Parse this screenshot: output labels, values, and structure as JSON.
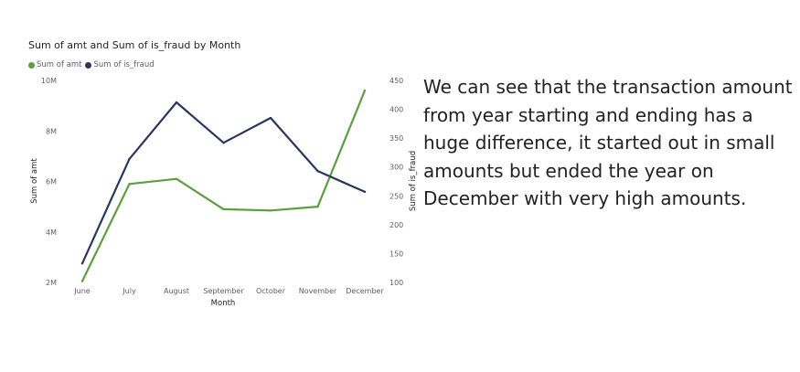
{
  "chart_data": {
    "type": "line",
    "title": "Sum of amt and Sum of is_fraud by Month",
    "xlabel": "Month",
    "ylabel": "Sum of amt",
    "y2label": "Sum of is_fraud",
    "categories": [
      "June",
      "July",
      "August",
      "September",
      "October",
      "November",
      "December"
    ],
    "ylim": [
      2000000,
      10000000
    ],
    "y_ticks": [
      2000000,
      4000000,
      6000000,
      8000000,
      10000000
    ],
    "y_tick_labels": [
      "2M",
      "4M",
      "6M",
      "8M",
      "10M"
    ],
    "y2lim": [
      100,
      450
    ],
    "y2_ticks": [
      100,
      150,
      200,
      250,
      300,
      350,
      400,
      450
    ],
    "y2_tick_labels": [
      "100",
      "150",
      "200",
      "250",
      "300",
      "350",
      "400",
      "450"
    ],
    "grid": false,
    "legend_position": "top-left",
    "series": [
      {
        "name": "Sum of amt",
        "axis": "left",
        "color": "#5aa03c",
        "values": [
          2050000,
          5900000,
          6100000,
          4900000,
          4850000,
          5000000,
          9600000
        ]
      },
      {
        "name": "Sum of is_fraud",
        "axis": "right",
        "color": "#283760",
        "values": [
          133,
          314,
          412,
          342,
          385,
          293,
          257
        ]
      }
    ]
  },
  "commentary": {
    "lines": [
      "We can see that the transaction amount",
      "from year starting and ending has a",
      "huge difference, it started out in small",
      "amounts but ended the year on",
      "December with very high amounts."
    ]
  }
}
